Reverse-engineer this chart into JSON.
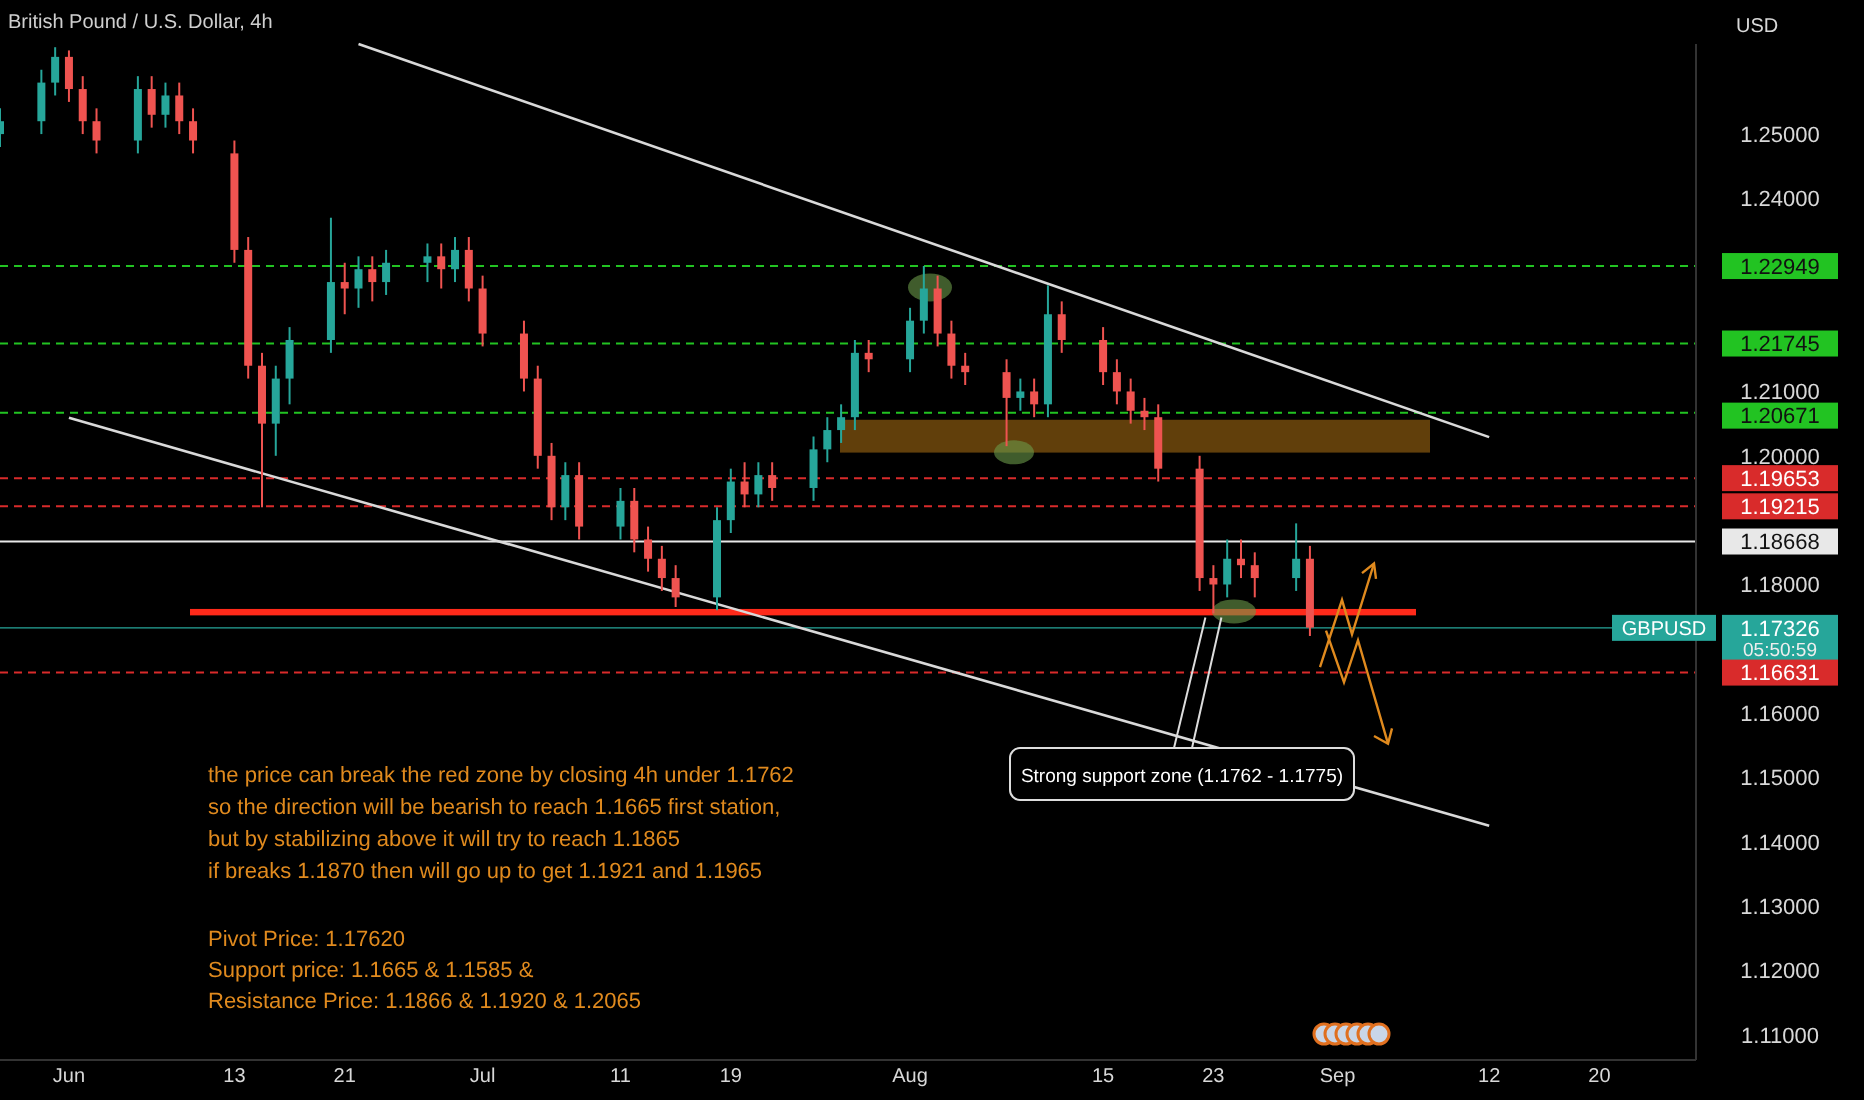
{
  "chart_data": {
    "type": "candlestick",
    "title": "British Pound / U.S. Dollar, 4h",
    "ylabel": "USD",
    "x": [
      "--05-27",
      "--05-30",
      "--05-31",
      "--06-01",
      "--06-02",
      "--06-03",
      "--06-06",
      "--06-07",
      "--06-08",
      "--06-09",
      "--06-10",
      "--06-13",
      "--06-14",
      "--06-15",
      "--06-16",
      "--06-17",
      "--06-20",
      "--06-21",
      "--06-22",
      "--06-23",
      "--06-24",
      "--06-27",
      "--06-28",
      "--06-29",
      "--06-30",
      "--07-01",
      "--07-04",
      "--07-05",
      "--07-06",
      "--07-07",
      "--07-08",
      "--07-11",
      "--07-12",
      "--07-13",
      "--07-14",
      "--07-15",
      "--07-18",
      "--07-19",
      "--07-20",
      "--07-21",
      "--07-22",
      "--07-25",
      "--07-26",
      "--07-27",
      "--07-28",
      "--07-29",
      "--08-01",
      "--08-02",
      "--08-03",
      "--08-04",
      "--08-05",
      "--08-08",
      "--08-09",
      "--08-10",
      "--08-11",
      "--08-12",
      "--08-15",
      "--08-16",
      "--08-17",
      "--08-18",
      "--08-19",
      "--08-22",
      "--08-23",
      "--08-24",
      "--08-25",
      "--08-26",
      "--08-29",
      "--08-30"
    ],
    "ohlc": [
      [
        1.25,
        1.254,
        1.248,
        1.252
      ],
      [
        1.252,
        1.26,
        1.25,
        1.258
      ],
      [
        1.258,
        1.2635,
        1.256,
        1.262
      ],
      [
        1.262,
        1.263,
        1.255,
        1.257
      ],
      [
        1.257,
        1.259,
        1.25,
        1.252
      ],
      [
        1.252,
        1.254,
        1.247,
        1.249
      ],
      [
        1.249,
        1.259,
        1.247,
        1.257
      ],
      [
        1.257,
        1.259,
        1.251,
        1.253
      ],
      [
        1.253,
        1.258,
        1.251,
        1.256
      ],
      [
        1.256,
        1.258,
        1.25,
        1.252
      ],
      [
        1.252,
        1.254,
        1.247,
        1.249
      ],
      [
        1.247,
        1.249,
        1.23,
        1.232
      ],
      [
        1.232,
        1.234,
        1.212,
        1.214
      ],
      [
        1.214,
        1.216,
        1.192,
        1.205
      ],
      [
        1.205,
        1.214,
        1.2,
        1.212
      ],
      [
        1.212,
        1.22,
        1.208,
        1.218
      ],
      [
        1.218,
        1.237,
        1.216,
        1.227
      ],
      [
        1.227,
        1.23,
        1.222,
        1.226
      ],
      [
        1.226,
        1.231,
        1.223,
        1.229
      ],
      [
        1.229,
        1.231,
        1.224,
        1.227
      ],
      [
        1.227,
        1.232,
        1.225,
        1.23
      ],
      [
        1.23,
        1.233,
        1.227,
        1.231
      ],
      [
        1.231,
        1.233,
        1.226,
        1.229
      ],
      [
        1.229,
        1.234,
        1.227,
        1.232
      ],
      [
        1.232,
        1.234,
        1.224,
        1.226
      ],
      [
        1.226,
        1.228,
        1.217,
        1.219
      ],
      [
        1.219,
        1.221,
        1.21,
        1.212
      ],
      [
        1.212,
        1.214,
        1.198,
        1.2
      ],
      [
        1.2,
        1.202,
        1.19,
        1.192
      ],
      [
        1.192,
        1.199,
        1.19,
        1.197
      ],
      [
        1.197,
        1.199,
        1.187,
        1.189
      ],
      [
        1.189,
        1.195,
        1.187,
        1.193
      ],
      [
        1.193,
        1.195,
        1.185,
        1.187
      ],
      [
        1.187,
        1.189,
        1.182,
        1.184
      ],
      [
        1.184,
        1.186,
        1.179,
        1.181
      ],
      [
        1.181,
        1.183,
        1.1765,
        1.178
      ],
      [
        1.178,
        1.192,
        1.176,
        1.19
      ],
      [
        1.19,
        1.198,
        1.188,
        1.196
      ],
      [
        1.196,
        1.199,
        1.192,
        1.194
      ],
      [
        1.194,
        1.199,
        1.192,
        1.197
      ],
      [
        1.197,
        1.199,
        1.193,
        1.195
      ],
      [
        1.195,
        1.203,
        1.193,
        1.201
      ],
      [
        1.201,
        1.206,
        1.199,
        1.204
      ],
      [
        1.204,
        1.208,
        1.202,
        1.206
      ],
      [
        1.206,
        1.218,
        1.204,
        1.216
      ],
      [
        1.216,
        1.218,
        1.213,
        1.215
      ],
      [
        1.215,
        1.223,
        1.213,
        1.221
      ],
      [
        1.221,
        1.2295,
        1.219,
        1.226
      ],
      [
        1.226,
        1.228,
        1.217,
        1.219
      ],
      [
        1.219,
        1.221,
        1.212,
        1.214
      ],
      [
        1.214,
        1.216,
        1.211,
        1.213
      ],
      [
        1.213,
        1.215,
        1.2015,
        1.209
      ],
      [
        1.209,
        1.212,
        1.207,
        1.21
      ],
      [
        1.21,
        1.212,
        1.206,
        1.208
      ],
      [
        1.208,
        1.2265,
        1.206,
        1.222
      ],
      [
        1.222,
        1.224,
        1.216,
        1.218
      ],
      [
        1.218,
        1.22,
        1.211,
        1.213
      ],
      [
        1.213,
        1.215,
        1.208,
        1.21
      ],
      [
        1.21,
        1.212,
        1.205,
        1.207
      ],
      [
        1.207,
        1.209,
        1.204,
        1.206
      ],
      [
        1.206,
        1.208,
        1.196,
        1.198
      ],
      [
        1.198,
        1.2,
        1.179,
        1.181
      ],
      [
        1.181,
        1.183,
        1.1755,
        1.18
      ],
      [
        1.18,
        1.187,
        1.178,
        1.184
      ],
      [
        1.184,
        1.187,
        1.181,
        1.183
      ],
      [
        1.183,
        1.185,
        1.178,
        1.181
      ],
      [
        1.181,
        1.1895,
        1.179,
        1.184
      ],
      [
        1.184,
        1.186,
        1.172,
        1.1733
      ]
    ],
    "colors": [
      "#26a69a",
      "#26a69a",
      "#26a69a",
      "#ef5350",
      "#ef5350",
      "#ef5350",
      "#26a69a",
      "#ef5350",
      "#26a69a",
      "#ef5350",
      "#ef5350",
      "#ef5350",
      "#ef5350",
      "#ef5350",
      "#26a69a",
      "#26a69a",
      "#26a69a",
      "#ef5350",
      "#26a69a",
      "#ef5350",
      "#26a69a",
      "#26a69a",
      "#ef5350",
      "#26a69a",
      "#ef5350",
      "#ef5350",
      "#ef5350",
      "#ef5350",
      "#ef5350",
      "#26a69a",
      "#ef5350",
      "#26a69a",
      "#ef5350",
      "#ef5350",
      "#ef5350",
      "#ef5350",
      "#26a69a",
      "#26a69a",
      "#ef5350",
      "#26a69a",
      "#ef5350",
      "#26a69a",
      "#26a69a",
      "#26a69a",
      "#26a69a",
      "#ef5350",
      "#26a69a",
      "#26a69a",
      "#ef5350",
      "#ef5350",
      "#ef5350",
      "#ef5350",
      "#26a69a",
      "#ef5350",
      "#26a69a",
      "#ef5350",
      "#ef5350",
      "#ef5350",
      "#ef5350",
      "#ef5350",
      "#ef5350",
      "#ef5350",
      "#ef5350",
      "#26a69a",
      "#ef5350",
      "#ef5350",
      "#26a69a",
      "#ef5350"
    ],
    "series": [
      {
        "type": "line",
        "color": "#d9d9d9",
        "x": [
          "--06-22",
          "--09-12"
        ],
        "values": [
          1.264,
          1.2029
        ]
      },
      {
        "type": "line",
        "color": "#d9d9d9",
        "x": [
          "--06-01",
          "--09-12"
        ],
        "values": [
          1.2059,
          1.1425
        ]
      }
    ],
    "xlim": [
      "--05-27",
      "--09-27"
    ],
    "xticks": [
      {
        "value": "--06-01",
        "label": "Jun"
      },
      {
        "value": "--06-13",
        "label": "13"
      },
      {
        "value": "--06-21",
        "label": "21"
      },
      {
        "value": "--07-01",
        "label": "Jul"
      },
      {
        "value": "--07-11",
        "label": "11"
      },
      {
        "value": "--07-19",
        "label": "19"
      },
      {
        "value": "--08-01",
        "label": "Aug"
      },
      {
        "value": "--08-15",
        "label": "15"
      },
      {
        "value": "--08-23",
        "label": "23"
      },
      {
        "value": "--09-01",
        "label": "Sep"
      },
      {
        "value": "--09-12",
        "label": "12"
      },
      {
        "value": "--09-20",
        "label": "20"
      }
    ],
    "ylim": [
      1.1061,
      1.264
    ],
    "yticks": [
      {
        "value": 1.11,
        "label": "1.11000"
      },
      {
        "value": 1.12,
        "label": "1.12000"
      },
      {
        "value": 1.13,
        "label": "1.13000"
      },
      {
        "value": 1.14,
        "label": "1.14000"
      },
      {
        "value": 1.15,
        "label": "1.15000"
      },
      {
        "value": 1.16,
        "label": "1.16000"
      },
      {
        "value": 1.18,
        "label": "1.18000"
      },
      {
        "value": 1.2,
        "label": "1.20000"
      },
      {
        "value": 1.21,
        "label": "1.21000"
      },
      {
        "value": 1.24,
        "label": "1.24000"
      },
      {
        "value": 1.25,
        "label": "1.25000"
      }
    ],
    "ref_lines": [
      {
        "axis": "y",
        "value": 1.22949,
        "label": "1.22949",
        "color": "#22c322",
        "line_style": "dashed"
      },
      {
        "axis": "y",
        "value": 1.21745,
        "label": "1.21745",
        "color": "#22c322",
        "line_style": "dashed"
      },
      {
        "axis": "y",
        "value": 1.20671,
        "label": "1.20671",
        "color": "#22c322",
        "line_style": "dashed"
      },
      {
        "axis": "y",
        "value": 1.19653,
        "label": "1.19653",
        "color": "#d92b2b",
        "line_style": "dashed"
      },
      {
        "axis": "y",
        "value": 1.19215,
        "label": "1.19215",
        "color": "#d92b2b",
        "line_style": "dashed"
      },
      {
        "axis": "y",
        "value": 1.18668,
        "label": "1.18668",
        "color": "#e8e8e8",
        "line_style": "solid"
      },
      {
        "axis": "y",
        "value": 1.17326,
        "label": "1.17326",
        "color": "#26a69a",
        "line_style": "solid"
      },
      {
        "axis": "y",
        "value": 1.16631,
        "label": "1.16631",
        "color": "#d92b2b",
        "line_style": "dashed"
      }
    ],
    "bands": [
      {
        "axis": "y",
        "from": 1.2005,
        "to": 1.2056,
        "color": "#8a5a10"
      },
      {
        "axis": "y",
        "from": 1.1752,
        "to": 1.1762,
        "color": "#ff2a1a"
      }
    ],
    "annotations": [
      {
        "text": "Strong support zone (1.1762 - 1.1775)",
        "x": "--08-23",
        "y": 1.1755
      },
      "the price can break the red zone by closing 4h under 1.1762",
      "so the direction will be bearish to reach 1.1665 first station,",
      "but by stabilizing above it will try to reach 1.1865",
      "if breaks 1.1870 then will go up to get 1.1921 and 1.1965",
      "Pivot Price: 1.17620",
      "Support price:  1.1665 & 1.1585 &",
      "Resistance Price: 1.1866  & 1.1920 & 1.2065",
      "GBPUSD",
      "05:50:59"
    ]
  }
}
